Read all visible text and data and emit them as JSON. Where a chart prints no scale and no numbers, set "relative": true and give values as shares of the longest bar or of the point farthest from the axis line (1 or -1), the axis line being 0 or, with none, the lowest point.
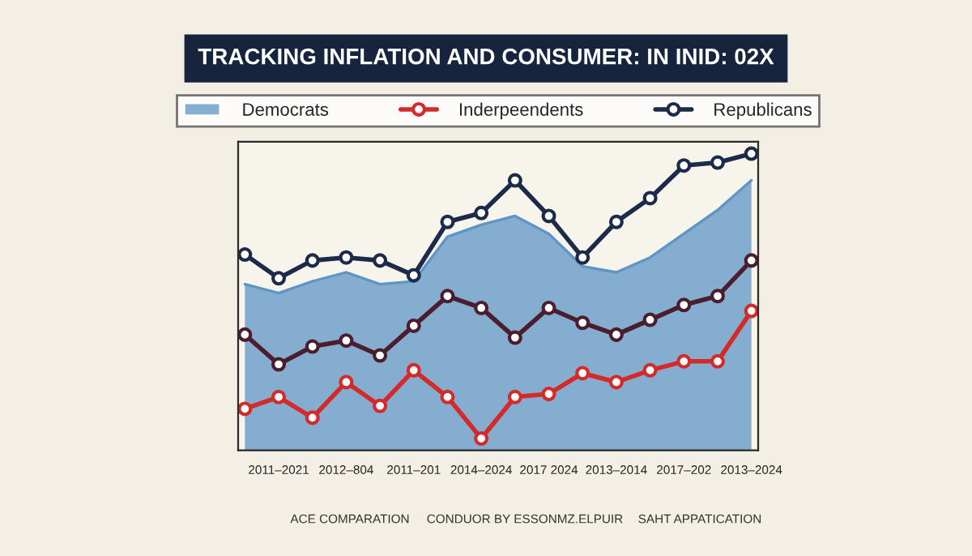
{
  "chart_data": {
    "type": "line",
    "title": "TRACKING INFLATION AND CONSUMER: IN INID: 02X",
    "relative": true,
    "legend": "top",
    "line_style": "solid",
    "grid": false,
    "categories": [
      null,
      "2011–2021",
      null,
      "2012–804",
      null,
      "2011–201",
      null,
      "2014–2024",
      null,
      "2017 2024",
      null,
      "2013–2014",
      null,
      "2017–202",
      null,
      "2013–2024"
    ],
    "series": [
      {
        "name": "Democrats",
        "type": "area",
        "color": "#5f95c6",
        "values": [
          0.56,
          0.53,
          0.57,
          0.6,
          0.56,
          0.57,
          0.72,
          0.76,
          0.79,
          0.73,
          0.62,
          0.6,
          0.65,
          0.73,
          0.81,
          0.91
        ]
      },
      {
        "marker": "circle",
        "color": "#4a1e2e",
        "values": [
          0.39,
          0.29,
          0.35,
          0.37,
          0.32,
          0.42,
          0.52,
          0.48,
          0.38,
          0.48,
          0.43,
          0.39,
          0.44,
          0.49,
          0.52,
          0.64
        ]
      },
      {
        "name": "Inderpeendents",
        "marker": "circle",
        "color": "#d42a2a",
        "values": [
          0.14,
          0.18,
          0.11,
          0.23,
          0.15,
          0.27,
          0.18,
          0.04,
          0.18,
          0.19,
          0.26,
          0.23,
          0.27,
          0.3,
          0.3,
          0.47
        ]
      },
      {
        "name": "Republicans",
        "marker": "circle",
        "color": "#1c2b4a",
        "values": [
          0.66,
          0.58,
          0.64,
          0.65,
          0.64,
          0.59,
          0.77,
          0.8,
          0.91,
          0.79,
          0.65,
          0.77,
          0.85,
          0.96,
          0.97,
          1.0
        ]
      }
    ],
    "annotations": [
      "ACE COMPARATION",
      "CONDUOR BY ESSONMZ.ELPUIR",
      "SAHT APPATICATION"
    ]
  }
}
